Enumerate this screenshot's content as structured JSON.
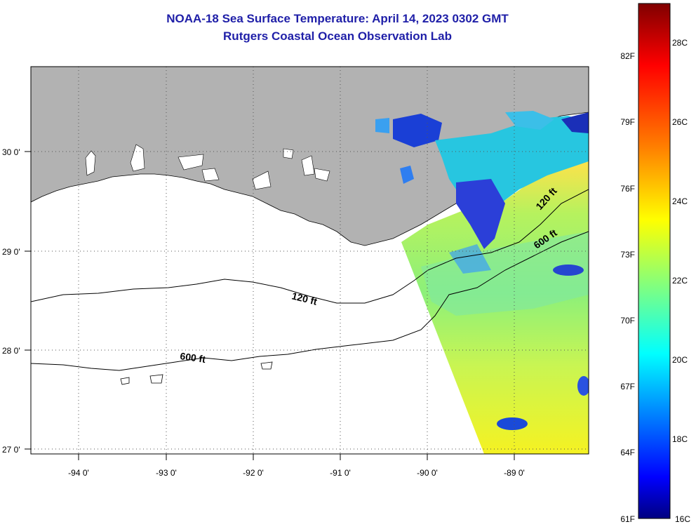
{
  "title": {
    "line1": "NOAA-18 Sea Surface Temperature:  April 14, 2023 0302 GMT",
    "line2": "Rutgers Coastal Ocean Observation Lab"
  },
  "map": {
    "lon_labels": [
      "-94 0'",
      "-93 0'",
      "-92 0'",
      "-91 0'",
      "-90 0'",
      "-89 0'"
    ],
    "lat_labels": [
      "30 0'",
      "29 0'",
      "28 0'",
      "27 0'"
    ],
    "isobath_labels": [
      "120 ft",
      "600 ft",
      "120 ft",
      "600 ft"
    ],
    "land_color": "#b2b2b2",
    "grid_style": "dotted"
  },
  "colorbar": {
    "f_labels": [
      "82F",
      "79F",
      "76F",
      "73F",
      "70F",
      "67F",
      "64F",
      "61F"
    ],
    "c_labels": [
      "28C",
      "26C",
      "24C",
      "22C",
      "20C",
      "18C",
      "16C"
    ],
    "colors": [
      "#800000",
      "#ff0000",
      "#ff8000",
      "#ffff00",
      "#80ff80",
      "#00ffff",
      "#0080ff",
      "#0000ff",
      "#000080"
    ]
  }
}
